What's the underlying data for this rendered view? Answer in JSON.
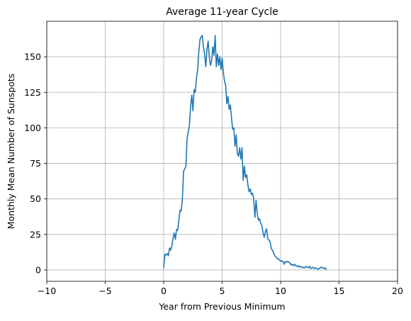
{
  "chart_data": {
    "type": "line",
    "title": "Average 11-year Cycle",
    "xlabel": "Year from Previous Minimum",
    "ylabel": "Monthly Mean Number of Sunspots",
    "xlim": [
      -10,
      20
    ],
    "ylim": [
      -8,
      175
    ],
    "xticks": [
      -10,
      -5,
      0,
      5,
      10,
      15,
      20
    ],
    "yticks": [
      0,
      25,
      50,
      75,
      100,
      125,
      150
    ],
    "grid": true,
    "line_color": "#1f77b4",
    "series": [
      {
        "x": [
          0.0,
          0.1,
          0.2,
          0.3,
          0.4,
          0.5,
          0.6,
          0.7,
          0.8,
          0.9,
          1.0,
          1.1,
          1.2,
          1.3,
          1.4,
          1.5,
          1.6,
          1.7,
          1.8,
          1.9,
          2.0,
          2.1,
          2.2,
          2.3,
          2.4,
          2.5,
          2.6,
          2.7,
          2.8,
          2.9,
          3.0,
          3.1,
          3.2,
          3.3,
          3.4,
          3.5,
          3.6,
          3.7,
          3.8,
          3.9,
          4.0,
          4.1,
          4.2,
          4.3,
          4.4,
          4.5,
          4.6,
          4.7,
          4.8,
          4.9,
          5.0,
          5.1,
          5.2,
          5.3,
          5.4,
          5.5,
          5.6,
          5.7,
          5.8,
          5.9,
          6.0,
          6.1,
          6.2,
          6.3,
          6.4,
          6.5,
          6.6,
          6.7,
          6.8,
          6.9,
          7.0,
          7.1,
          7.2,
          7.3,
          7.4,
          7.5,
          7.6,
          7.7,
          7.8,
          7.9,
          8.0,
          8.1,
          8.2,
          8.3,
          8.4,
          8.5,
          8.6,
          8.7,
          8.8,
          8.9,
          9.0,
          9.1,
          9.2,
          9.3,
          9.4,
          9.5,
          9.6,
          9.7,
          9.8,
          9.9,
          10.0,
          10.1,
          10.2,
          10.3,
          10.4,
          10.5,
          10.6,
          10.7,
          10.8,
          10.9,
          11.0,
          11.1,
          11.2,
          11.3,
          11.4,
          11.5,
          11.6,
          11.7,
          11.8,
          11.9,
          12.0,
          12.1,
          12.2,
          12.3,
          12.4,
          12.5,
          12.6,
          12.7,
          12.8,
          12.9,
          13.0,
          13.1,
          13.2,
          13.3,
          13.4,
          13.5,
          13.6,
          13.7,
          13.8,
          13.9
        ],
        "y": [
          1.5,
          11.0,
          10.5,
          11.5,
          10.0,
          15.5,
          14.0,
          17.0,
          22.5,
          26.0,
          21.5,
          28.5,
          28.0,
          35.0,
          42.0,
          41.5,
          50.0,
          69.5,
          71.0,
          73.0,
          92.5,
          97.0,
          102.0,
          115.0,
          123.0,
          112.0,
          127.0,
          125.0,
          135.0,
          140.0,
          153.0,
          162.0,
          164.0,
          165.0,
          157.0,
          152.0,
          143.0,
          155.0,
          161.0,
          150.0,
          144.0,
          147.0,
          157.0,
          151.0,
          165.0,
          143.0,
          152.0,
          144.0,
          150.0,
          141.0,
          149.0,
          139.0,
          133.0,
          130.0,
          117.0,
          122.0,
          113.0,
          116.0,
          107.0,
          99.0,
          100.0,
          87.0,
          95.0,
          82.0,
          80.0,
          86.0,
          78.0,
          86.0,
          63.0,
          73.0,
          65.0,
          67.0,
          60.0,
          55.0,
          57.0,
          53.0,
          54.0,
          50.0,
          37.0,
          49.0,
          40.0,
          35.0,
          36.0,
          33.0,
          31.0,
          26.0,
          23.0,
          27.0,
          29.0,
          22.0,
          21.0,
          20.0,
          15.0,
          14.0,
          12.0,
          10.0,
          9.0,
          8.0,
          8.0,
          7.0,
          6.0,
          6.5,
          6.0,
          4.0,
          6.0,
          5.5,
          6.0,
          5.5,
          5.0,
          3.5,
          4.0,
          3.0,
          4.0,
          3.0,
          2.5,
          3.0,
          2.0,
          2.5,
          2.0,
          1.5,
          2.0,
          1.5,
          2.5,
          2.0,
          1.5,
          2.5,
          1.0,
          1.5,
          2.0,
          1.0,
          1.5,
          1.0,
          0.5,
          1.0,
          1.5,
          2.0,
          1.5,
          1.0,
          1.5,
          0.5
        ]
      }
    ]
  }
}
